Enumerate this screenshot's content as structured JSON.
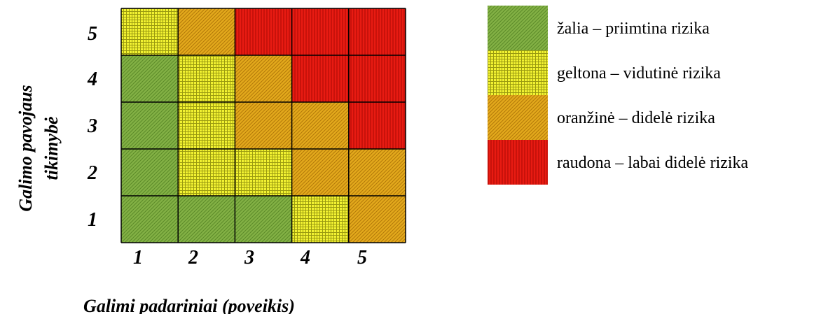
{
  "chart_data": {
    "type": "heatmap",
    "title": "",
    "xlabel": "Galimi padariniai (poveikis)",
    "ylabel_lines": [
      "Galimo pavojaus",
      "tikimybė"
    ],
    "x_ticks": [
      "1",
      "2",
      "3",
      "4",
      "5"
    ],
    "y_ticks": [
      "5",
      "4",
      "3",
      "2",
      "1"
    ],
    "grid": [
      [
        "geltona",
        "oranzine",
        "raudona",
        "raudona",
        "raudona"
      ],
      [
        "zalia",
        "geltona",
        "oranzine",
        "raudona",
        "raudona"
      ],
      [
        "zalia",
        "geltona",
        "oranzine",
        "oranzine",
        "raudona"
      ],
      [
        "zalia",
        "geltona",
        "geltona",
        "oranzine",
        "oranzine"
      ],
      [
        "zalia",
        "zalia",
        "zalia",
        "geltona",
        "oranzine"
      ]
    ],
    "categories": {
      "zalia": {
        "label": "žalia – priimtina rizika",
        "color": "#77a43b",
        "pattern": "diag"
      },
      "geltona": {
        "label": "geltona – vidutinė rizika",
        "color": "#e6e62a",
        "pattern": "grid"
      },
      "oranzine": {
        "label": "oranžinė – didelė  rizika",
        "color": "#d59a16",
        "pattern": "diag"
      },
      "raudona": {
        "label": "raudona – labai didelė rizika",
        "color": "#d9150e",
        "pattern": "vert"
      }
    },
    "legend_order": [
      "zalia",
      "geltona",
      "oranzine",
      "raudona"
    ],
    "legend_position": "right"
  }
}
